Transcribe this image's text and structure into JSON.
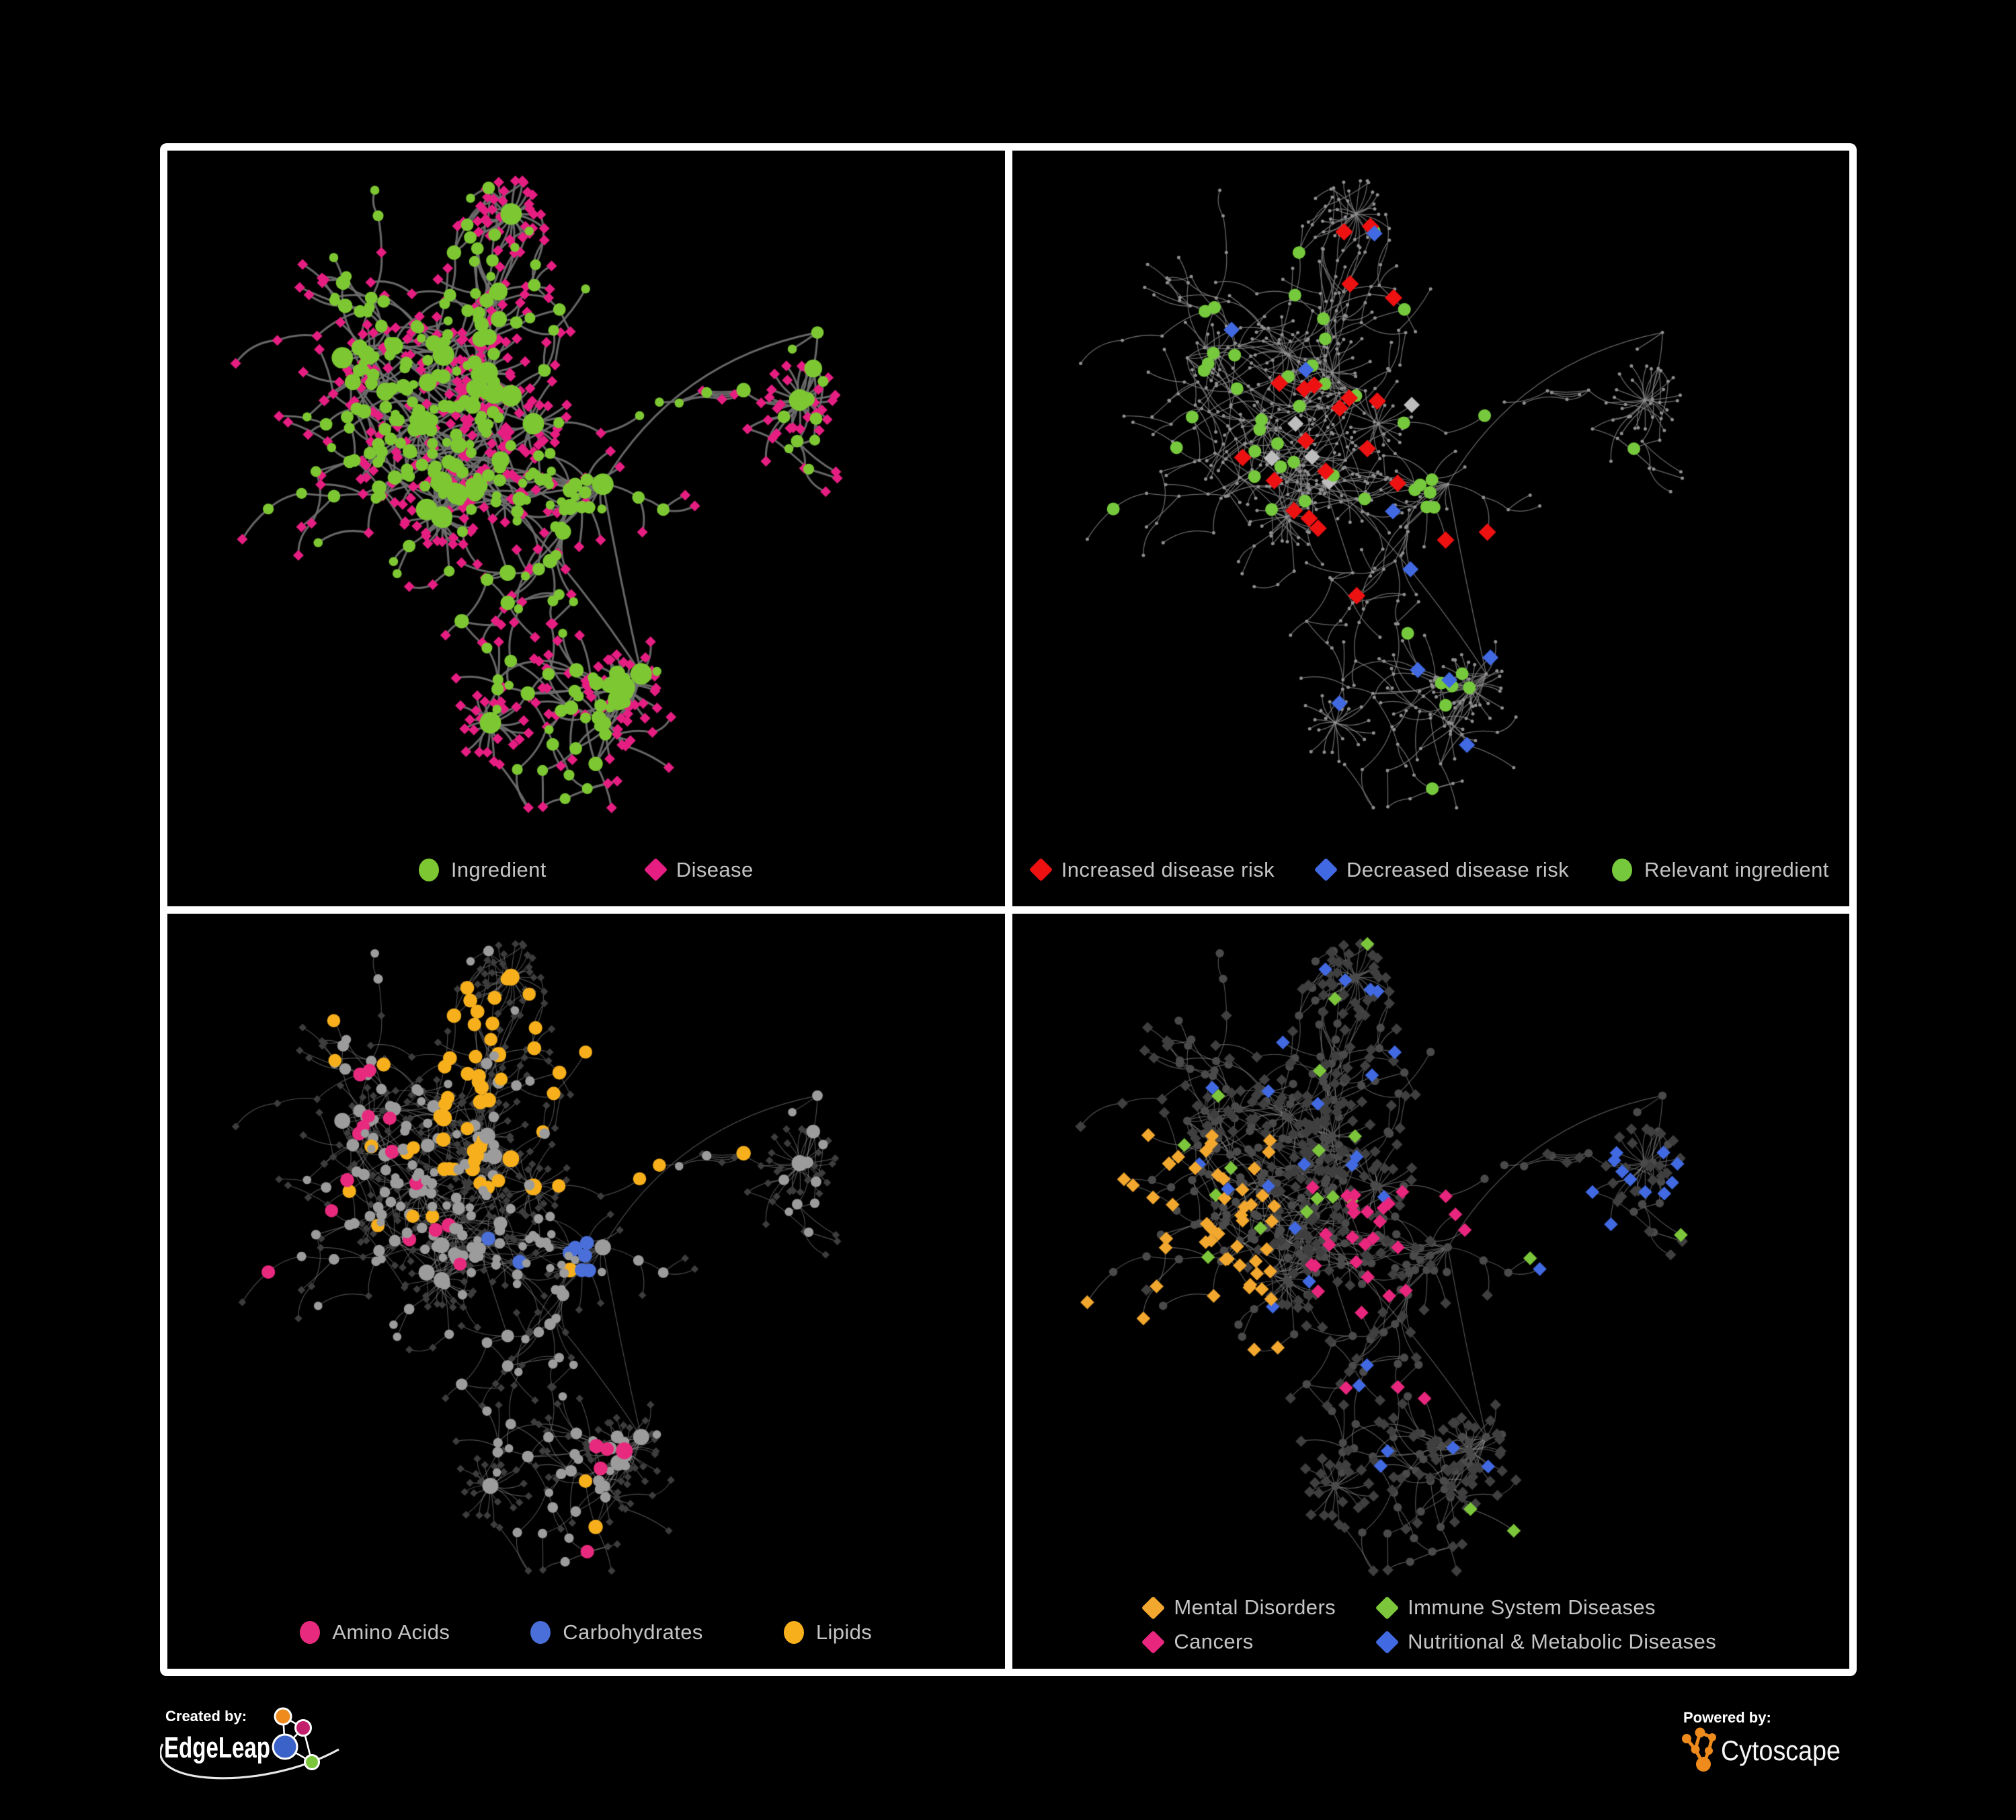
{
  "figure": {
    "background": "#000000",
    "frame_color": "#ffffff"
  },
  "colors": {
    "ingredient_green": "#7dc832",
    "disease_pink": "#e61e82",
    "risk_red": "#ee1111",
    "risk_blue": "#4169e1",
    "risk_silver": "#bdbdbd",
    "relevant_green": "#76c93c",
    "amino_pink": "#e82a7e",
    "carb_blue": "#4a6fd8",
    "lipid_orange": "#f7b01c",
    "mental_orange": "#f2a72e",
    "immune_green": "#7cc63c",
    "cancer_pink": "#e8267d",
    "nutri_blue": "#4169e1",
    "edge_gray": "#6f6f6f",
    "edge_mid": "#828282",
    "edge_light": "#9a9a9a",
    "node_gray": "#8f8f8f",
    "node_dark": "#3d3d3d",
    "dark_diamond": "#3f3f3f",
    "hub_gray": "#9c9c9c",
    "dark_circle": "#4a4a4a",
    "logo_orange": "#ef8a1c",
    "logo_magenta": "#c21f6d",
    "logo_blue": "#3b62c9",
    "logo_green": "#7cc63c"
  },
  "panels": [
    {
      "id": "ingredient-disease",
      "legend": [
        {
          "shape": "circle",
          "color_key": "ingredient_green",
          "label": "Ingredient"
        },
        {
          "shape": "diamond",
          "color_key": "disease_pink",
          "label": "Disease"
        }
      ]
    },
    {
      "id": "disease-risk",
      "legend": [
        {
          "shape": "diamond",
          "color_key": "risk_red",
          "label": "Increased disease risk"
        },
        {
          "shape": "diamond",
          "color_key": "risk_blue",
          "label": "Decreased disease risk"
        },
        {
          "shape": "circle",
          "color_key": "relevant_green",
          "label": "Relevant ingredient"
        }
      ]
    },
    {
      "id": "nutrient-classes",
      "legend": [
        {
          "shape": "circle",
          "color_key": "amino_pink",
          "label": "Amino Acids"
        },
        {
          "shape": "circle",
          "color_key": "carb_blue",
          "label": "Carbohydrates"
        },
        {
          "shape": "circle",
          "color_key": "lipid_orange",
          "label": "Lipids"
        }
      ]
    },
    {
      "id": "disease-classes",
      "two_col": true,
      "legend": [
        {
          "shape": "diamond",
          "color_key": "mental_orange",
          "label": "Mental Disorders"
        },
        {
          "shape": "diamond",
          "color_key": "immune_green",
          "label": "Immune System Diseases"
        },
        {
          "shape": "diamond",
          "color_key": "cancer_pink",
          "label": "Cancers"
        },
        {
          "shape": "diamond",
          "color_key": "nutri_blue",
          "label": "Nutritional & Metabolic Diseases"
        }
      ]
    }
  ],
  "network": {
    "seed": 20177,
    "nodes": 640,
    "bursts": 8,
    "extra_edges": 55
  },
  "footer": {
    "created_by": "Created by:",
    "edgeleap_wordmark": "EdgeLeap",
    "powered_by": "Powered by:",
    "cytoscape_wordmark": "Cytoscape"
  }
}
